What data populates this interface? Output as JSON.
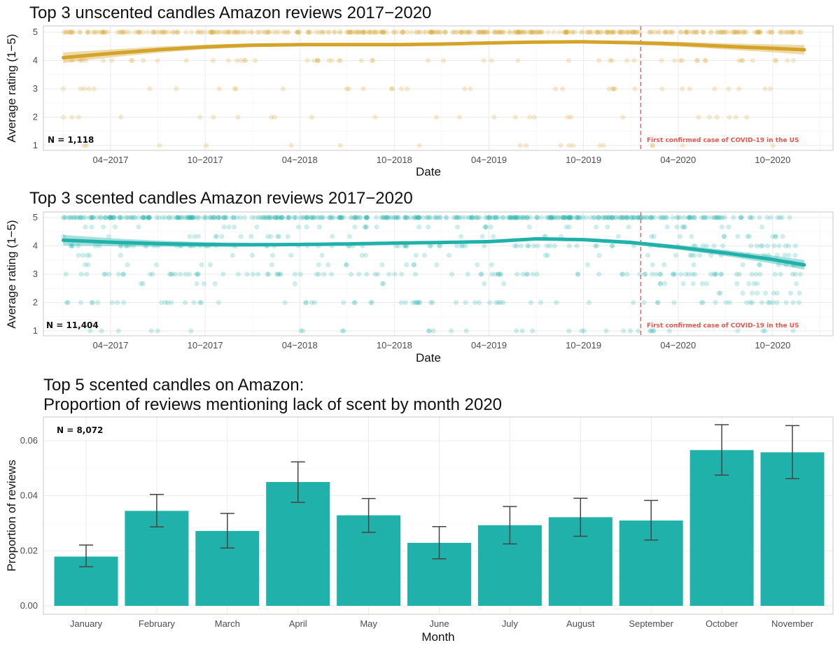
{
  "chart_data": [
    {
      "type": "scatter",
      "title": "Top 3 unscented candles Amazon reviews 2017−2020",
      "xlabel": "Date",
      "ylabel": "Average rating (1−5)",
      "ylim": [
        1,
        5
      ],
      "xlim": [
        "2016-11",
        "2021-01"
      ],
      "yticks": [
        "1",
        "2",
        "3",
        "4",
        "5"
      ],
      "xticks": [
        "04−2017",
        "10−2017",
        "04−2018",
        "10−2018",
        "04−2019",
        "10−2019",
        "04−2020",
        "10−2020"
      ],
      "grid": true,
      "color": "#d4a32a",
      "annotation_n": "N = 1,118",
      "vline": {
        "date": "2020-01-20",
        "label": "First confirmed case of COVID-19 in the US",
        "color": "#e8564a"
      },
      "trend": {
        "x": [
          "2017-01",
          "2017-04",
          "2017-07",
          "2017-10",
          "2018-01",
          "2018-04",
          "2018-07",
          "2018-10",
          "2019-01",
          "2019-04",
          "2019-07",
          "2019-10",
          "2020-01",
          "2020-04",
          "2020-07",
          "2020-10",
          "2020-12"
        ],
        "y": [
          4.1,
          4.25,
          4.38,
          4.48,
          4.54,
          4.56,
          4.56,
          4.56,
          4.58,
          4.62,
          4.65,
          4.66,
          4.63,
          4.58,
          4.5,
          4.43,
          4.38
        ]
      }
    },
    {
      "type": "scatter",
      "title": "Top 3 scented candles Amazon reviews 2017−2020",
      "xlabel": "Date",
      "ylabel": "Average rating (1−5)",
      "ylim": [
        1,
        5
      ],
      "xlim": [
        "2016-11",
        "2021-01"
      ],
      "yticks": [
        "1",
        "2",
        "3",
        "4",
        "5"
      ],
      "xticks": [
        "04−2017",
        "10−2017",
        "04−2018",
        "10−2018",
        "04−2019",
        "10−2019",
        "04−2020",
        "10−2020"
      ],
      "grid": true,
      "color": "#20b2aa",
      "annotation_n": "N = 11,404",
      "vline": {
        "date": "2020-01-20",
        "label": "First confirmed case of COVID-19 in the US",
        "color": "#e8564a"
      },
      "trend": {
        "x": [
          "2017-01",
          "2017-04",
          "2017-07",
          "2017-10",
          "2018-01",
          "2018-04",
          "2018-07",
          "2018-10",
          "2019-01",
          "2019-04",
          "2019-07",
          "2019-10",
          "2020-01",
          "2020-04",
          "2020-07",
          "2020-10",
          "2020-12"
        ],
        "y": [
          4.2,
          4.13,
          4.08,
          4.05,
          4.04,
          4.05,
          4.07,
          4.1,
          4.12,
          4.15,
          4.25,
          4.22,
          4.12,
          3.95,
          3.75,
          3.52,
          3.33
        ]
      }
    },
    {
      "type": "bar",
      "title": "Top 5 scented candles on Amazon:",
      "subtitle": "Proportion of reviews mentioning lack of scent by month 2020",
      "xlabel": "Month",
      "ylabel": "Proportion of reviews",
      "ylim": [
        0,
        0.068
      ],
      "yticks": [
        "0.00",
        "0.02",
        "0.04",
        "0.06"
      ],
      "grid": true,
      "color": "#20b2aa",
      "annotation_n": "N = 8,072",
      "categories": [
        "January",
        "February",
        "March",
        "April",
        "May",
        "June",
        "July",
        "August",
        "September",
        "October",
        "November"
      ],
      "values": [
        0.0179,
        0.0345,
        0.0272,
        0.045,
        0.0329,
        0.0229,
        0.0293,
        0.0322,
        0.031,
        0.0566,
        0.0558
      ],
      "error_low": [
        0.0142,
        0.0287,
        0.021,
        0.0376,
        0.0267,
        0.0171,
        0.0225,
        0.0253,
        0.0239,
        0.0475,
        0.0462
      ],
      "error_high": [
        0.0221,
        0.0405,
        0.0336,
        0.0523,
        0.039,
        0.0288,
        0.0361,
        0.0391,
        0.0383,
        0.0658,
        0.0655
      ]
    }
  ]
}
